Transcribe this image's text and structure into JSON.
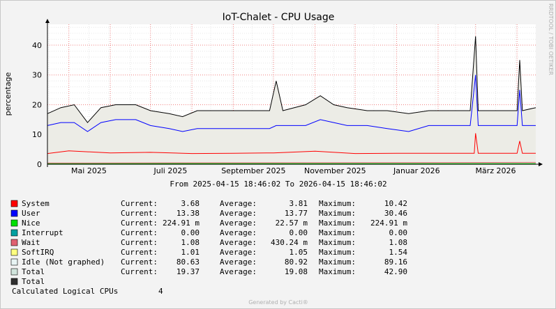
{
  "chart_data": {
    "type": "line",
    "title": "IoT-Chalet - CPU Usage",
    "ylabel": "percentage",
    "ylim": [
      0,
      47
    ],
    "y_ticks": [
      0,
      10,
      20,
      30,
      40
    ],
    "x_ticks": [
      "Mai 2025",
      "Juli 2025",
      "September 2025",
      "November 2025",
      "Januar 2026",
      "März 2026"
    ],
    "x_range": [
      "2025-04-15",
      "2026-04-15"
    ],
    "grid": true,
    "period_text": "From 2025-04-15 18:46:02 To 2026-04-15 18:46:02",
    "side_text": "RRDTOOL / TOBI OETIKER",
    "series": [
      {
        "name": "Total",
        "color": "#000000",
        "points": [
          [
            "2025-04-15",
            17
          ],
          [
            "2025-04-25",
            19
          ],
          [
            "2025-05-05",
            20
          ],
          [
            "2025-05-15",
            14
          ],
          [
            "2025-05-25",
            19
          ],
          [
            "2025-06-05",
            20
          ],
          [
            "2025-06-20",
            20
          ],
          [
            "2025-07-01",
            18
          ],
          [
            "2025-07-15",
            17
          ],
          [
            "2025-07-25",
            16
          ],
          [
            "2025-08-05",
            18
          ],
          [
            "2025-08-20",
            18
          ],
          [
            "2025-09-10",
            18
          ],
          [
            "2025-09-28",
            18
          ],
          [
            "2025-10-03",
            28
          ],
          [
            "2025-10-08",
            18
          ],
          [
            "2025-10-25",
            20
          ],
          [
            "2025-11-05",
            23
          ],
          [
            "2025-11-15",
            20
          ],
          [
            "2025-11-25",
            19
          ],
          [
            "2025-12-10",
            18
          ],
          [
            "2025-12-25",
            18
          ],
          [
            "2026-01-10",
            17
          ],
          [
            "2026-01-25",
            18
          ],
          [
            "2026-02-10",
            18
          ],
          [
            "2026-02-25",
            18
          ],
          [
            "2026-03-01",
            43
          ],
          [
            "2026-03-03",
            18
          ],
          [
            "2026-03-20",
            18
          ],
          [
            "2026-04-01",
            18
          ],
          [
            "2026-04-03",
            35
          ],
          [
            "2026-04-05",
            18
          ],
          [
            "2026-04-15",
            19
          ]
        ]
      },
      {
        "name": "User",
        "color": "#0000ff",
        "points": [
          [
            "2025-04-15",
            13
          ],
          [
            "2025-04-25",
            14
          ],
          [
            "2025-05-05",
            14
          ],
          [
            "2025-05-15",
            11
          ],
          [
            "2025-05-25",
            14
          ],
          [
            "2025-06-05",
            15
          ],
          [
            "2025-06-20",
            15
          ],
          [
            "2025-07-01",
            13
          ],
          [
            "2025-07-15",
            12
          ],
          [
            "2025-07-25",
            11
          ],
          [
            "2025-08-05",
            12
          ],
          [
            "2025-08-20",
            12
          ],
          [
            "2025-09-10",
            12
          ],
          [
            "2025-09-28",
            12
          ],
          [
            "2025-10-03",
            13
          ],
          [
            "2025-10-08",
            13
          ],
          [
            "2025-10-25",
            13
          ],
          [
            "2025-11-05",
            15
          ],
          [
            "2025-11-15",
            14
          ],
          [
            "2025-11-25",
            13
          ],
          [
            "2025-12-10",
            13
          ],
          [
            "2025-12-25",
            12
          ],
          [
            "2026-01-10",
            11
          ],
          [
            "2026-01-25",
            13
          ],
          [
            "2026-02-10",
            13
          ],
          [
            "2026-02-25",
            13
          ],
          [
            "2026-03-01",
            30
          ],
          [
            "2026-03-03",
            13
          ],
          [
            "2026-03-20",
            13
          ],
          [
            "2026-04-01",
            13
          ],
          [
            "2026-04-03",
            25
          ],
          [
            "2026-04-05",
            13
          ],
          [
            "2026-04-15",
            13
          ]
        ]
      },
      {
        "name": "System",
        "color": "#ff0000",
        "points": [
          [
            "2025-04-15",
            3.6
          ],
          [
            "2025-05-01",
            4.5
          ],
          [
            "2025-06-01",
            3.8
          ],
          [
            "2025-07-01",
            4
          ],
          [
            "2025-08-01",
            3.6
          ],
          [
            "2025-09-01",
            3.7
          ],
          [
            "2025-10-01",
            3.8
          ],
          [
            "2025-11-01",
            4.4
          ],
          [
            "2025-12-01",
            3.6
          ],
          [
            "2026-01-01",
            3.7
          ],
          [
            "2026-02-01",
            3.7
          ],
          [
            "2026-02-28",
            3.7
          ],
          [
            "2026-03-01",
            10.4
          ],
          [
            "2026-03-03",
            3.7
          ],
          [
            "2026-04-01",
            3.7
          ],
          [
            "2026-04-03",
            7.8
          ],
          [
            "2026-04-05",
            3.7
          ],
          [
            "2026-04-15",
            3.7
          ]
        ]
      },
      {
        "name": "Nice",
        "color": "#00c800",
        "points": [
          [
            "2025-04-15",
            0.2
          ],
          [
            "2026-04-15",
            0.2
          ]
        ]
      },
      {
        "name": "Wait",
        "color": "#e06070",
        "points": [
          [
            "2025-04-15",
            0.4
          ],
          [
            "2026-04-15",
            0.6
          ]
        ]
      }
    ],
    "legend": [
      {
        "name": "System",
        "color": "#ff0000",
        "current": "3.68",
        "average": "3.81",
        "maximum": "10.42"
      },
      {
        "name": "User",
        "color": "#0000ff",
        "current": "13.38",
        "average": "13.77",
        "maximum": "30.46"
      },
      {
        "name": "Nice",
        "color": "#00e000",
        "current": "224.91 m",
        "average": "22.57 m",
        "maximum": "224.91 m"
      },
      {
        "name": "Interrupt",
        "color": "#00a0a0",
        "current": "0.00",
        "average": "0.00",
        "maximum": "0.00"
      },
      {
        "name": "Wait",
        "color": "#e06070",
        "current": "1.08",
        "average": "430.24 m",
        "maximum": "1.08"
      },
      {
        "name": "SoftIRQ",
        "color": "#ffff80",
        "current": "1.01",
        "average": "1.05",
        "maximum": "1.54"
      },
      {
        "name": "Idle (Not graphed)",
        "color": "#e8f4f4",
        "current": "80.63",
        "average": "80.92",
        "maximum": "89.16"
      },
      {
        "name": "Total",
        "color": "#d0e4dc",
        "current": "19.37",
        "average": "19.08",
        "maximum": "42.90"
      },
      {
        "name": "Total",
        "color": "#303030",
        "current": null,
        "average": null,
        "maximum": null
      }
    ],
    "stat_labels": {
      "current": "Current:",
      "average": "Average:",
      "maximum": "Maximum:"
    }
  },
  "footer": {
    "logical_cpus_label": "Calculated Logical CPUs",
    "logical_cpus_value": "4",
    "generated_by": "Generated by Cacti®"
  }
}
